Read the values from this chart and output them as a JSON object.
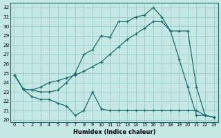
{
  "background_color": "#c5e8e5",
  "grid_color": "#9ecece",
  "line_color": "#1a6b6b",
  "xlabel": "Humidex (Indice chaleur)",
  "xlim": [
    -0.5,
    23.5
  ],
  "ylim": [
    19.8,
    32.5
  ],
  "yticks": [
    20,
    21,
    22,
    23,
    24,
    25,
    26,
    27,
    28,
    29,
    30,
    31,
    32
  ],
  "xticks": [
    0,
    1,
    2,
    3,
    4,
    5,
    6,
    7,
    8,
    9,
    10,
    11,
    12,
    13,
    14,
    15,
    16,
    17,
    18,
    19,
    20,
    21,
    22,
    23
  ],
  "line1": {
    "x": [
      0,
      1,
      2,
      3,
      4,
      5,
      6,
      7,
      8,
      9,
      10,
      11,
      12,
      13,
      14,
      15,
      16,
      17,
      18,
      19,
      20,
      21,
      22,
      23
    ],
    "y": [
      24.8,
      23.3,
      23.2,
      23.5,
      24.0,
      24.2,
      24.5,
      24.8,
      25.2,
      25.7,
      26.2,
      27.0,
      27.8,
      28.6,
      29.2,
      29.8,
      30.5,
      30.5,
      29.5,
      29.5,
      29.5,
      23.5,
      20.5,
      20.3
    ]
  },
  "line2": {
    "x": [
      0,
      1,
      2,
      3,
      4,
      5,
      6,
      7,
      8,
      9,
      10,
      11,
      12,
      13,
      14,
      15,
      16,
      17,
      18,
      19,
      20,
      21,
      22,
      23
    ],
    "y": [
      24.8,
      23.3,
      23.2,
      23.0,
      23.0,
      23.2,
      24.0,
      25.0,
      27.0,
      27.5,
      29.0,
      28.8,
      30.5,
      30.5,
      31.0,
      31.2,
      32.0,
      31.0,
      29.5,
      26.5,
      23.5,
      20.5,
      20.5,
      20.3
    ]
  },
  "line3": {
    "x": [
      0,
      1,
      2,
      3,
      4,
      5,
      6,
      7,
      8,
      9,
      10,
      11,
      12,
      13,
      14,
      15,
      16,
      17,
      18,
      19,
      20,
      21,
      22,
      23
    ],
    "y": [
      24.8,
      23.3,
      22.5,
      22.2,
      22.2,
      21.8,
      21.5,
      20.5,
      21.0,
      23.0,
      21.2,
      21.0,
      21.0,
      21.0,
      21.0,
      21.0,
      21.0,
      21.0,
      21.0,
      21.0,
      21.0,
      21.0,
      20.5,
      20.3
    ]
  }
}
